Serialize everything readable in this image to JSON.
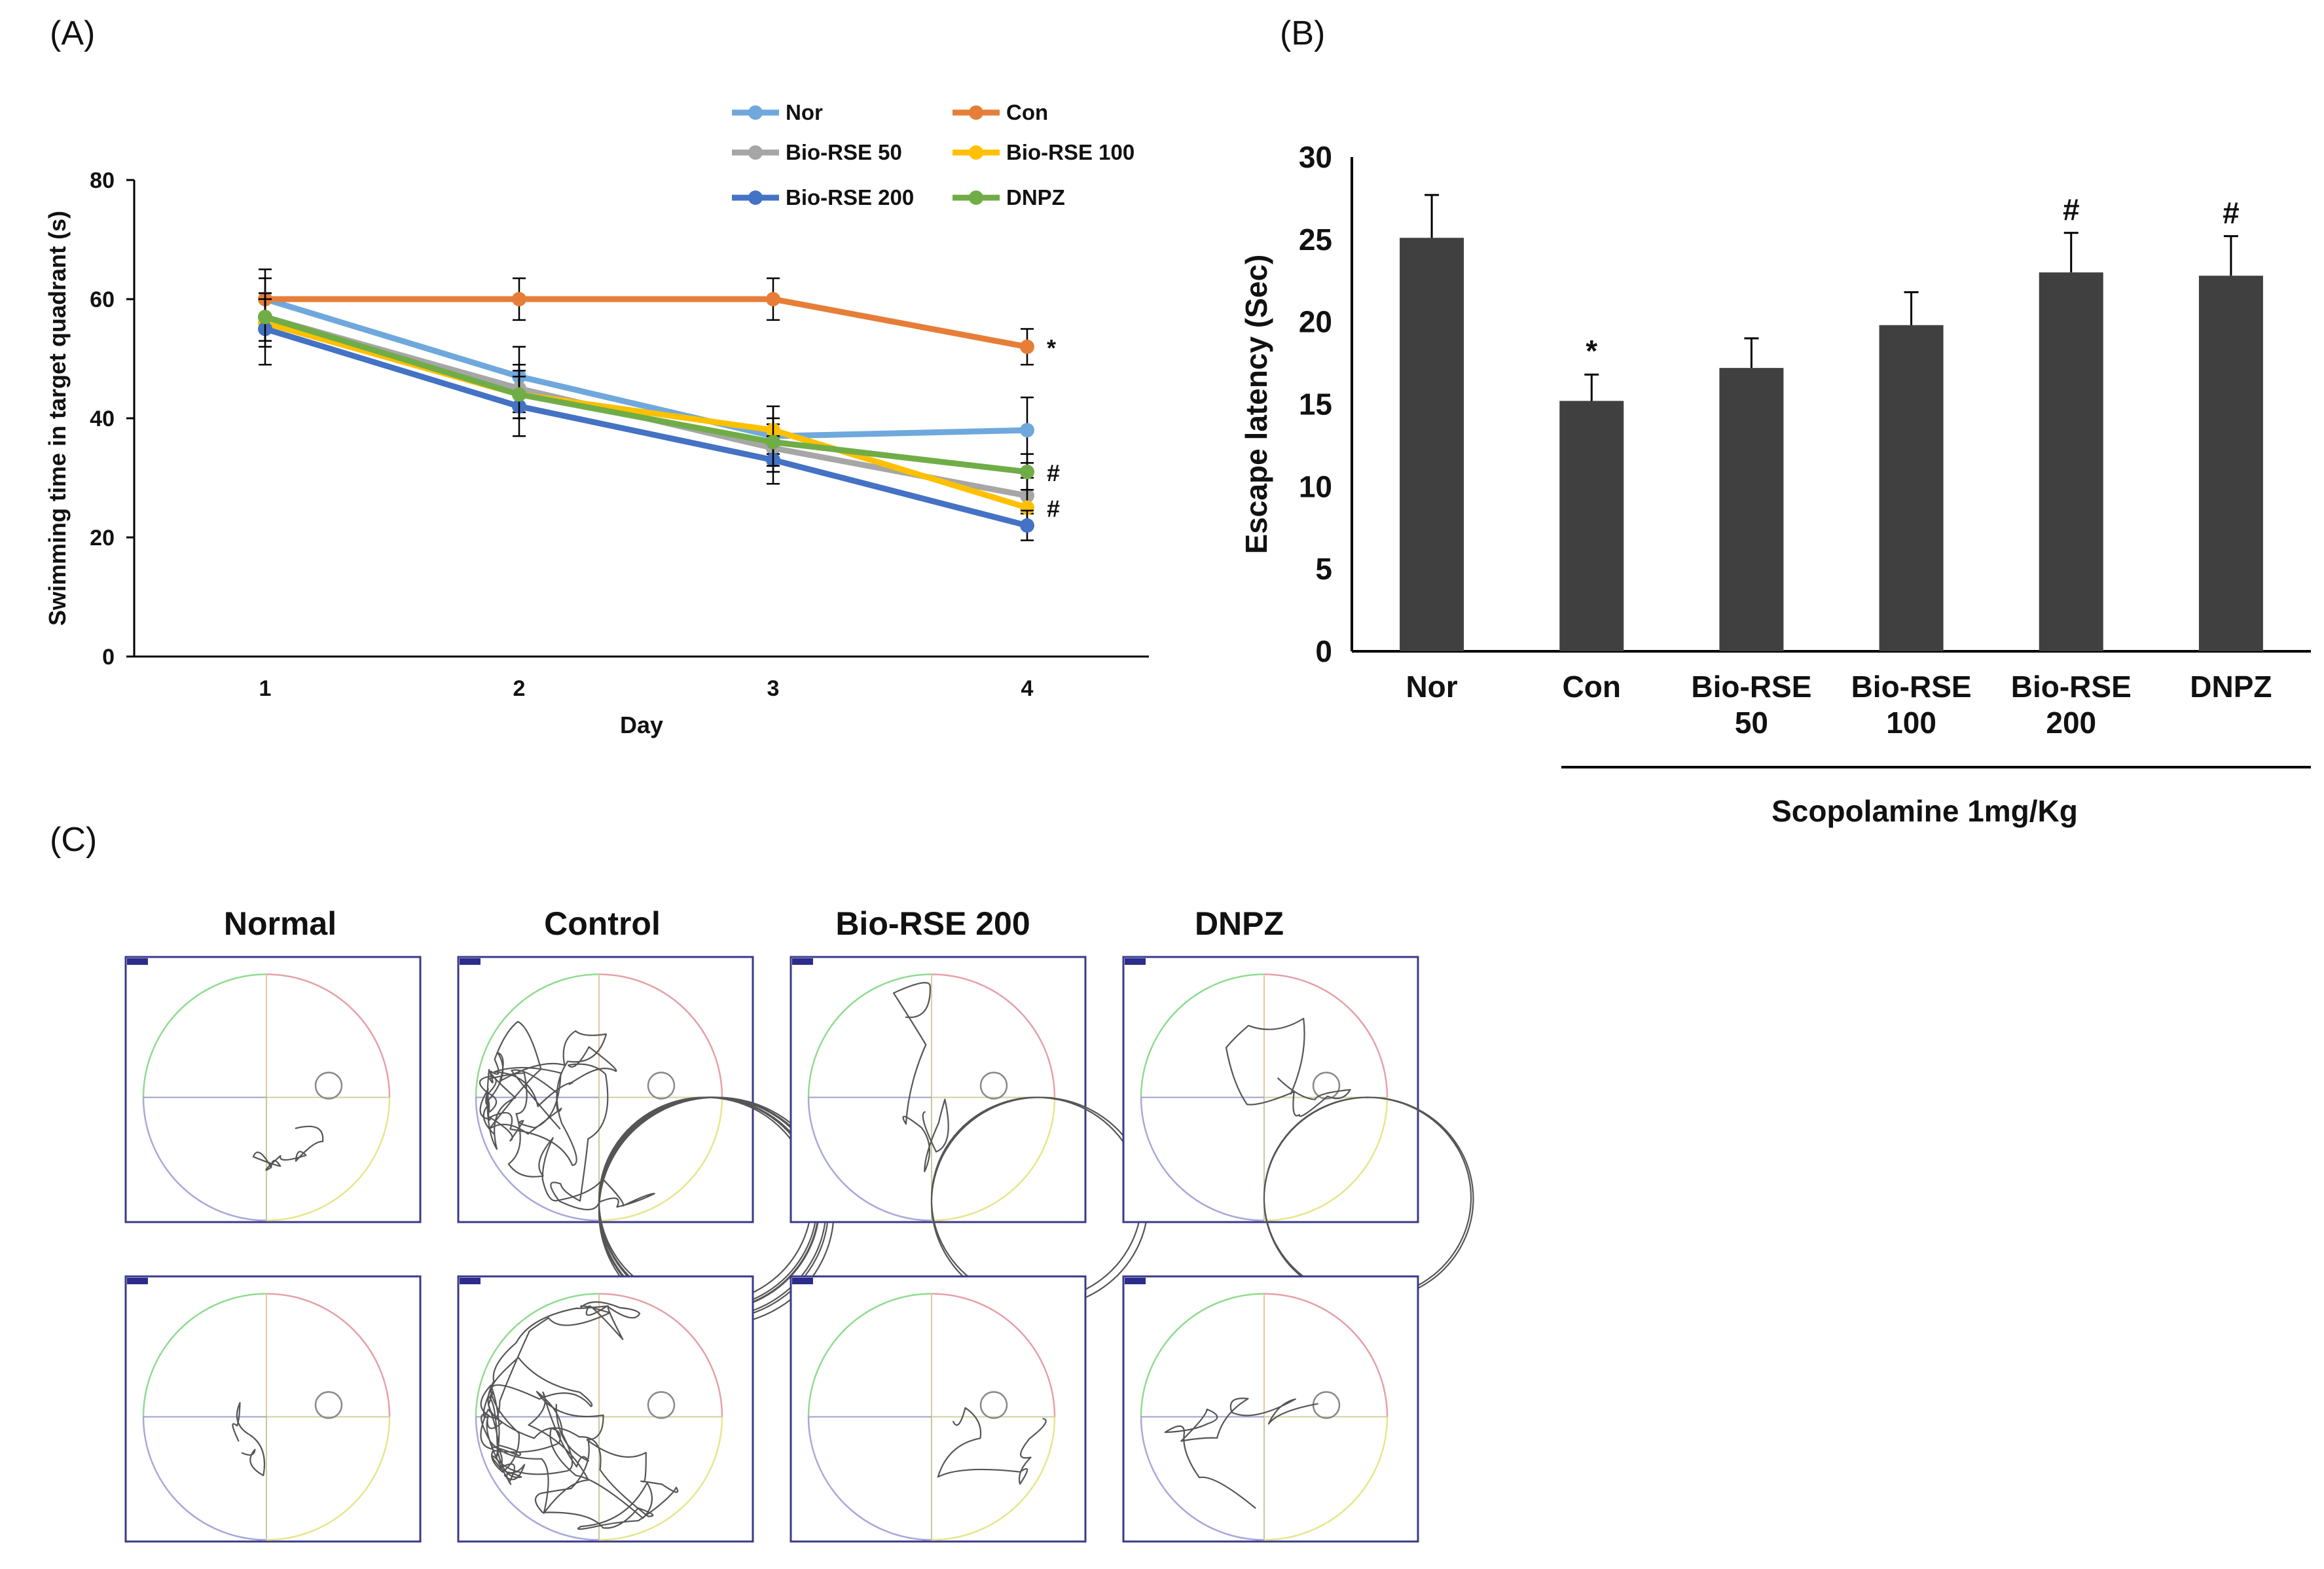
{
  "panels": {
    "a": "(A)",
    "b": "(B)",
    "c": "(C)"
  },
  "chart_data": [
    {
      "type": "line",
      "panel": "A",
      "title": "",
      "xlabel": "Day",
      "ylabel": "Swimming time in target quadrant (s)",
      "x": [
        1,
        2,
        3,
        4
      ],
      "xticks": [
        "1",
        "2",
        "3",
        "4"
      ],
      "xlim": [
        0.5,
        4.5
      ],
      "ylim": [
        0,
        80
      ],
      "yticks": [
        0,
        20,
        40,
        60,
        80
      ],
      "legend_position": "top-right",
      "series": [
        {
          "name": "Nor",
          "color": "#6fa8dc",
          "values": [
            60,
            47,
            37,
            38
          ],
          "errors": [
            5,
            5,
            5,
            5.5
          ]
        },
        {
          "name": "Con",
          "color": "#e67e38",
          "values": [
            60,
            60,
            60,
            52
          ],
          "errors": [
            3.5,
            3.5,
            3.5,
            3
          ]
        },
        {
          "name": "Bio-RSE 50",
          "color": "#a6a6a6",
          "values": [
            57,
            45,
            35,
            27
          ],
          "errors": [
            4,
            4,
            4,
            3
          ]
        },
        {
          "name": "Bio-RSE 100",
          "color": "#ffc000",
          "values": [
            56,
            44,
            38,
            25
          ],
          "errors": [
            4,
            4,
            4,
            3
          ]
        },
        {
          "name": "Bio-RSE 200",
          "color": "#4472c4",
          "values": [
            55,
            42,
            33,
            22
          ],
          "errors": [
            6,
            5,
            4,
            2.5
          ]
        },
        {
          "name": "DNPZ",
          "color": "#70ad47",
          "values": [
            57,
            44,
            36,
            31
          ],
          "errors": [
            4,
            4,
            4,
            3
          ]
        }
      ],
      "annotations": [
        {
          "text": "*",
          "x": 4,
          "y": 52
        },
        {
          "text": "#",
          "x": 4,
          "y": 31
        },
        {
          "text": "#",
          "x": 4,
          "y": 25
        }
      ]
    },
    {
      "type": "bar",
      "panel": "B",
      "title": "",
      "xlabel": "Scopolamine 1mg/Kg",
      "ylabel": "Escape latency (Sec)",
      "categories": [
        [
          "Nor"
        ],
        [
          "Con"
        ],
        [
          "Bio-RSE",
          "50"
        ],
        [
          "Bio-RSE",
          "100"
        ],
        [
          "Bio-RSE",
          "200"
        ],
        [
          "DNPZ"
        ]
      ],
      "values": [
        25.1,
        15.2,
        17.2,
        19.8,
        23.0,
        22.8
      ],
      "errors": [
        2.6,
        1.6,
        1.8,
        2.0,
        2.4,
        2.4
      ],
      "marks": [
        "",
        "*",
        "",
        "",
        "#",
        "#"
      ],
      "ylim": [
        0,
        30
      ],
      "yticks": [
        0,
        5,
        10,
        15,
        20,
        25,
        30
      ],
      "color": "#404040"
    }
  ],
  "trajectories": {
    "headers": [
      "Normal",
      "Control",
      "Bio-RSE 200",
      "DNPZ"
    ]
  }
}
